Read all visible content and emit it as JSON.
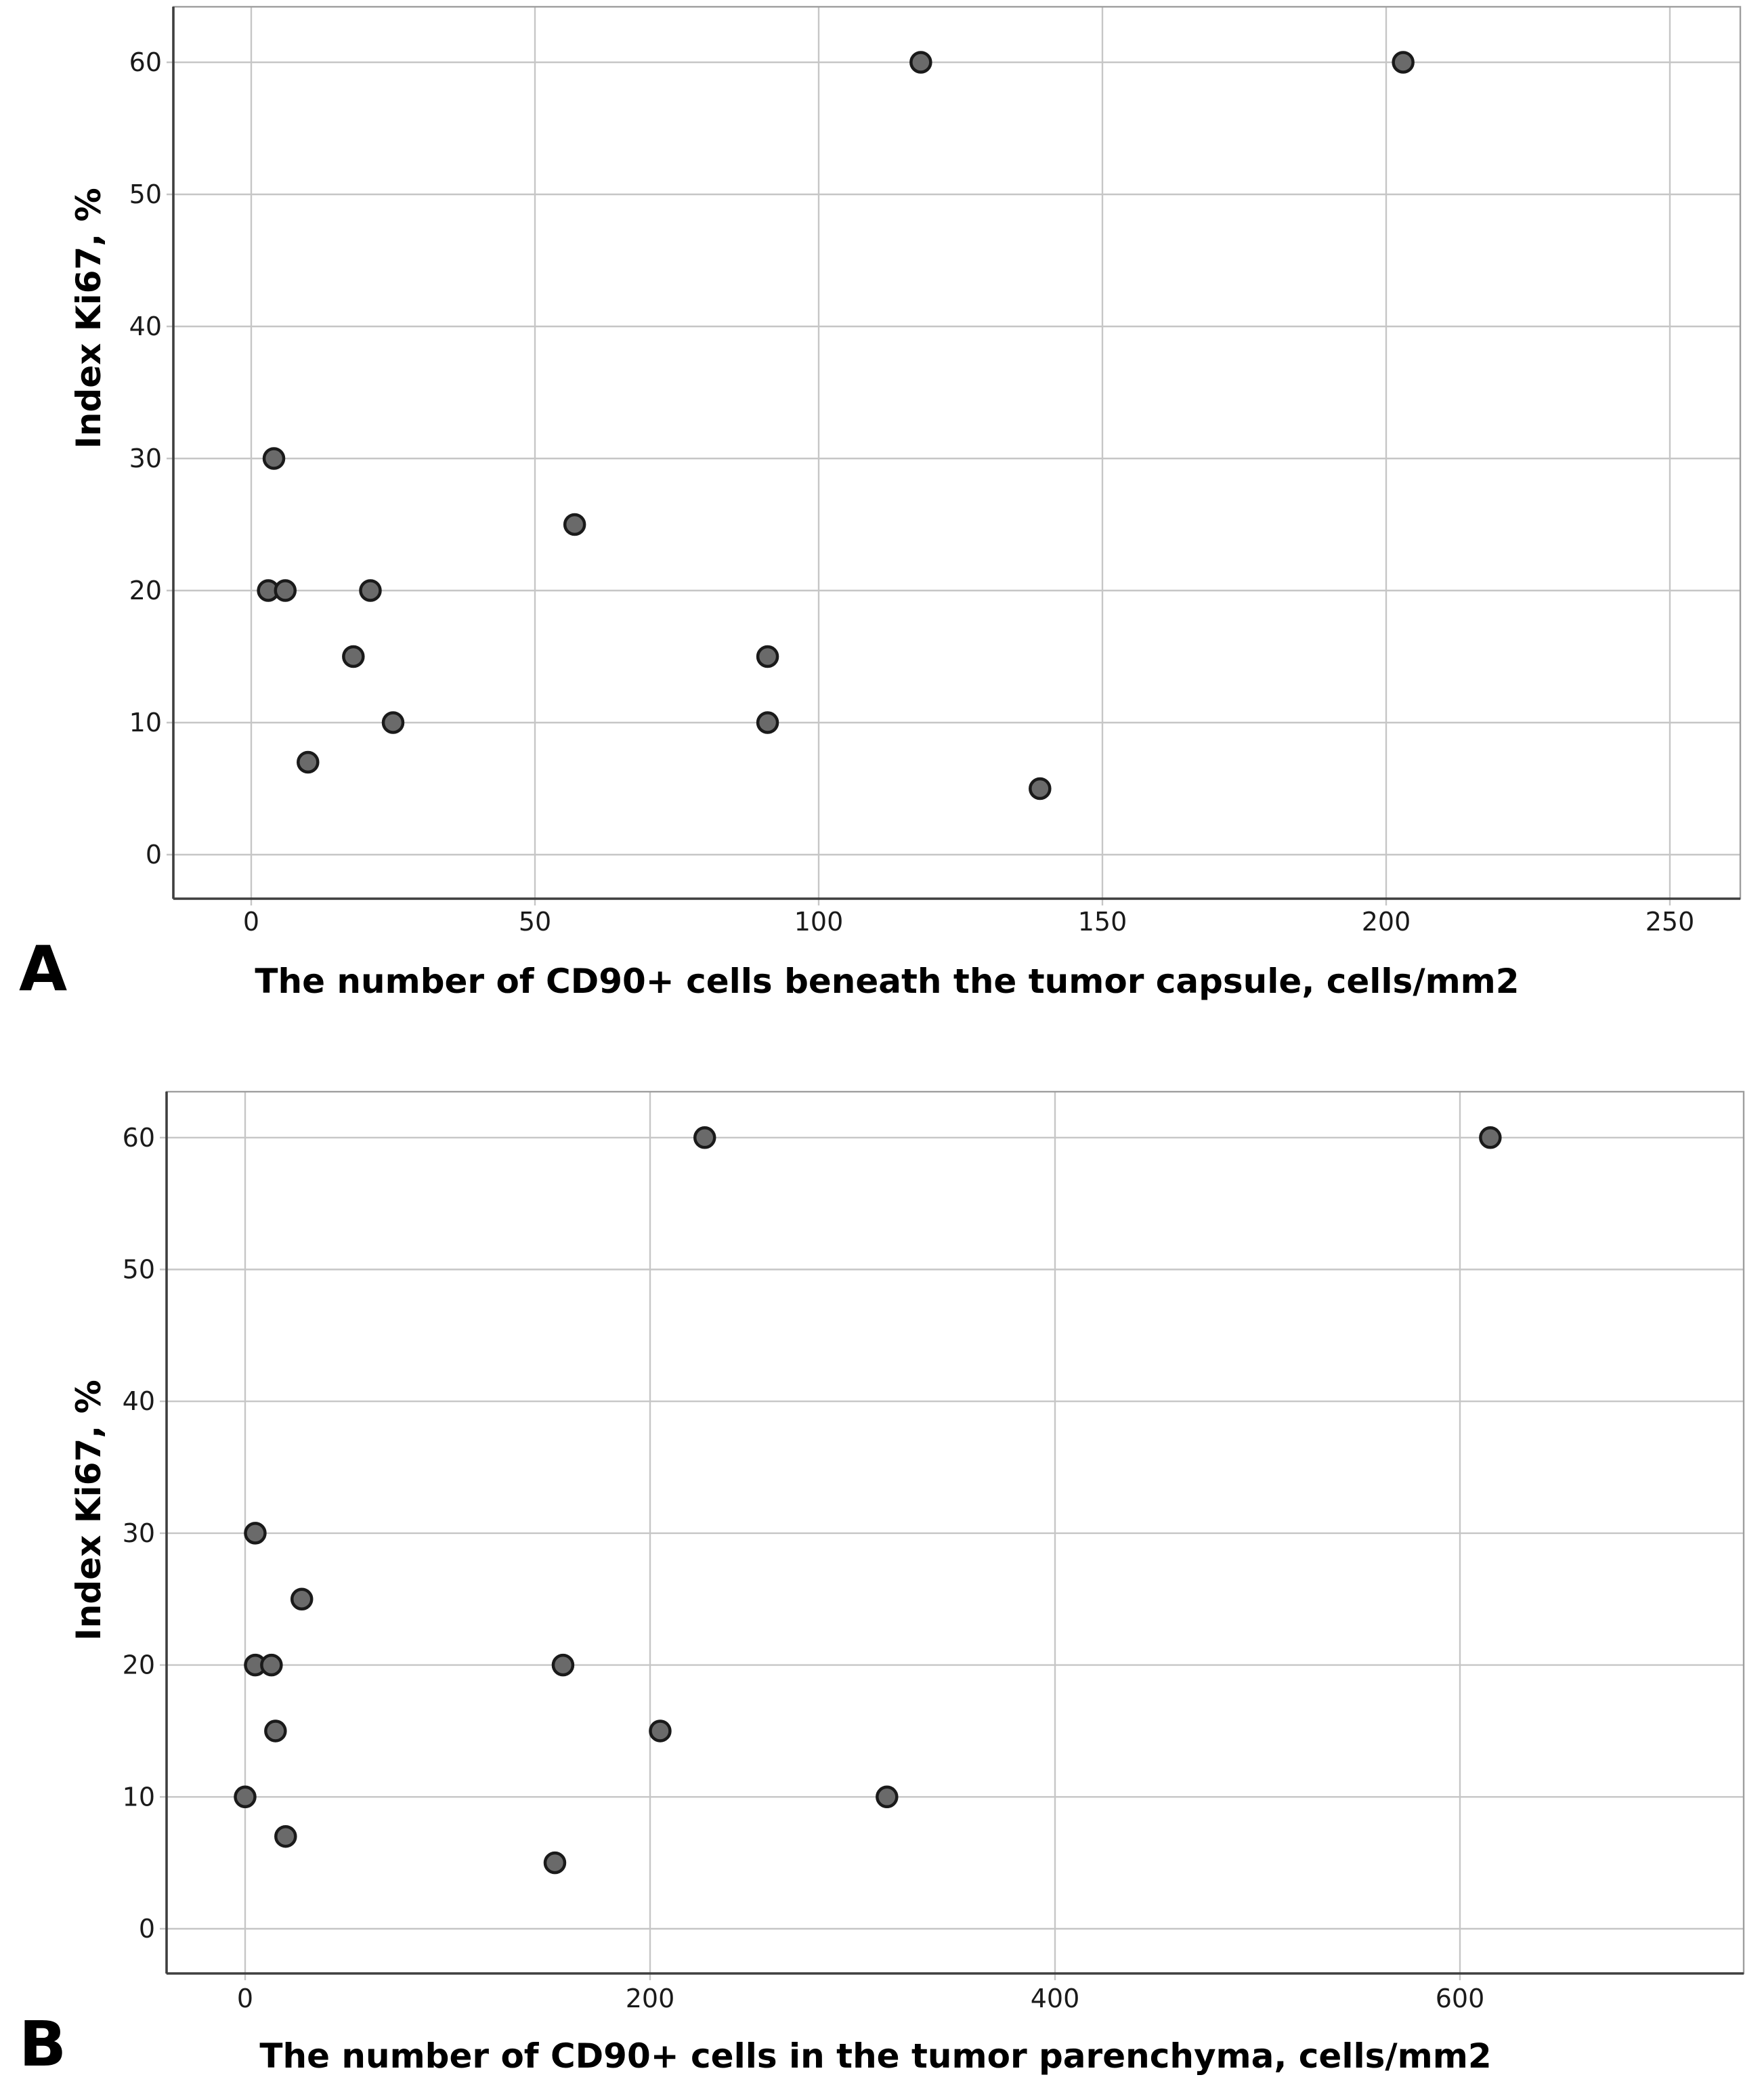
{
  "figure": {
    "background": "#ffffff",
    "panel_letters": [
      "A",
      "B"
    ],
    "marker_fill": "#6a6a6a",
    "marker_stroke": "#1a1a1a",
    "gridline_color": "#c6c6c6",
    "axis_color": "#3f3f3f"
  },
  "chart_data": [
    {
      "type": "scatter",
      "panel": "A",
      "xlabel": "The number of CD90+ cells beneath the tumor capsule, cells/mm2",
      "ylabel": "Index Ki67, %",
      "x_ticks": [
        0,
        50,
        100,
        150,
        200,
        250
      ],
      "y_ticks": [
        0,
        10,
        20,
        30,
        40,
        50,
        60
      ],
      "xlim": [
        -14,
        262
      ],
      "ylim": [
        -3.3,
        64.5
      ],
      "grid": true,
      "legend": "none",
      "points": [
        {
          "x": 118,
          "y": 60
        },
        {
          "x": 203,
          "y": 60
        },
        {
          "x": 4,
          "y": 30
        },
        {
          "x": 57,
          "y": 25
        },
        {
          "x": 3,
          "y": 20
        },
        {
          "x": 6,
          "y": 20
        },
        {
          "x": 21,
          "y": 20
        },
        {
          "x": 18,
          "y": 15
        },
        {
          "x": 91,
          "y": 15
        },
        {
          "x": 25,
          "y": 10
        },
        {
          "x": 91,
          "y": 10
        },
        {
          "x": 10,
          "y": 7
        },
        {
          "x": 139,
          "y": 5
        }
      ]
    },
    {
      "type": "scatter",
      "panel": "B",
      "xlabel": "The number of CD90+ cells in the tumor parenchyma, cells/mm2",
      "ylabel": "Index Ki67, %",
      "x_ticks": [
        0,
        200,
        400,
        600
      ],
      "y_ticks": [
        0,
        10,
        20,
        30,
        40,
        50,
        60
      ],
      "xlim": [
        -39,
        740
      ],
      "ylim": [
        -3.4,
        63.5
      ],
      "grid": true,
      "legend": "none",
      "points": [
        {
          "x": 227,
          "y": 60
        },
        {
          "x": 615,
          "y": 60
        },
        {
          "x": 5,
          "y": 30
        },
        {
          "x": 28,
          "y": 25
        },
        {
          "x": 5,
          "y": 20
        },
        {
          "x": 13,
          "y": 20
        },
        {
          "x": 157,
          "y": 20
        },
        {
          "x": 15,
          "y": 15
        },
        {
          "x": 205,
          "y": 15
        },
        {
          "x": 0,
          "y": 10
        },
        {
          "x": 317,
          "y": 10
        },
        {
          "x": 20,
          "y": 7
        },
        {
          "x": 153,
          "y": 5
        }
      ]
    }
  ]
}
